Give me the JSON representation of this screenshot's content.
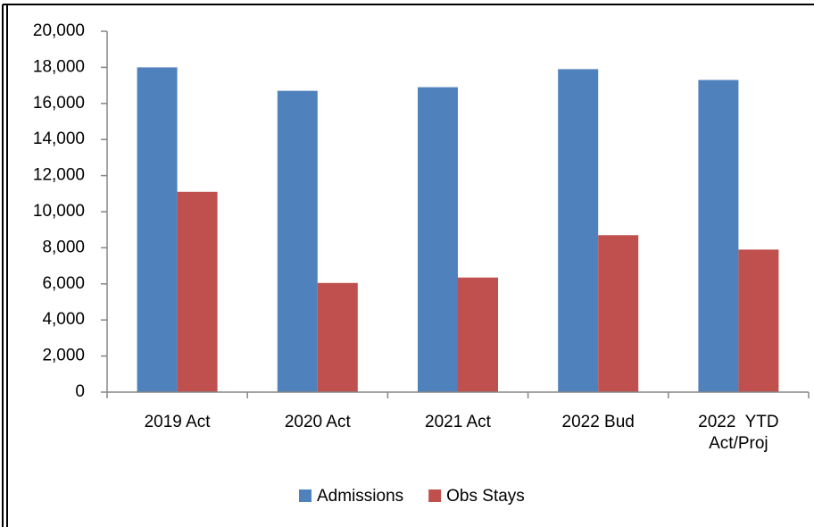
{
  "chart_data": {
    "type": "bar",
    "categories": [
      "2019 Act",
      "2020 Act",
      "2021 Act",
      "2022 Bud",
      "2022  YTD Act/Proj"
    ],
    "series": [
      {
        "name": "Admissions",
        "color": "#4f81bd",
        "values": [
          18000,
          16700,
          16900,
          17900,
          17300
        ]
      },
      {
        "name": "Obs Stays",
        "color": "#c0504d",
        "values": [
          11100,
          6050,
          6350,
          8700,
          7900
        ]
      }
    ],
    "ylim": [
      0,
      20000
    ],
    "yticks": [
      {
        "value": 0,
        "label": "0"
      },
      {
        "value": 2000,
        "label": "2,000"
      },
      {
        "value": 4000,
        "label": "4,000"
      },
      {
        "value": 6000,
        "label": "6,000"
      },
      {
        "value": 8000,
        "label": "8,000"
      },
      {
        "value": 10000,
        "label": "10,000"
      },
      {
        "value": 12000,
        "label": "12,000"
      },
      {
        "value": 14000,
        "label": "14,000"
      },
      {
        "value": 16000,
        "label": "16,000"
      },
      {
        "value": 18000,
        "label": "18,000"
      },
      {
        "value": 20000,
        "label": "20,000"
      }
    ],
    "grid": false,
    "legend": "bottom"
  }
}
